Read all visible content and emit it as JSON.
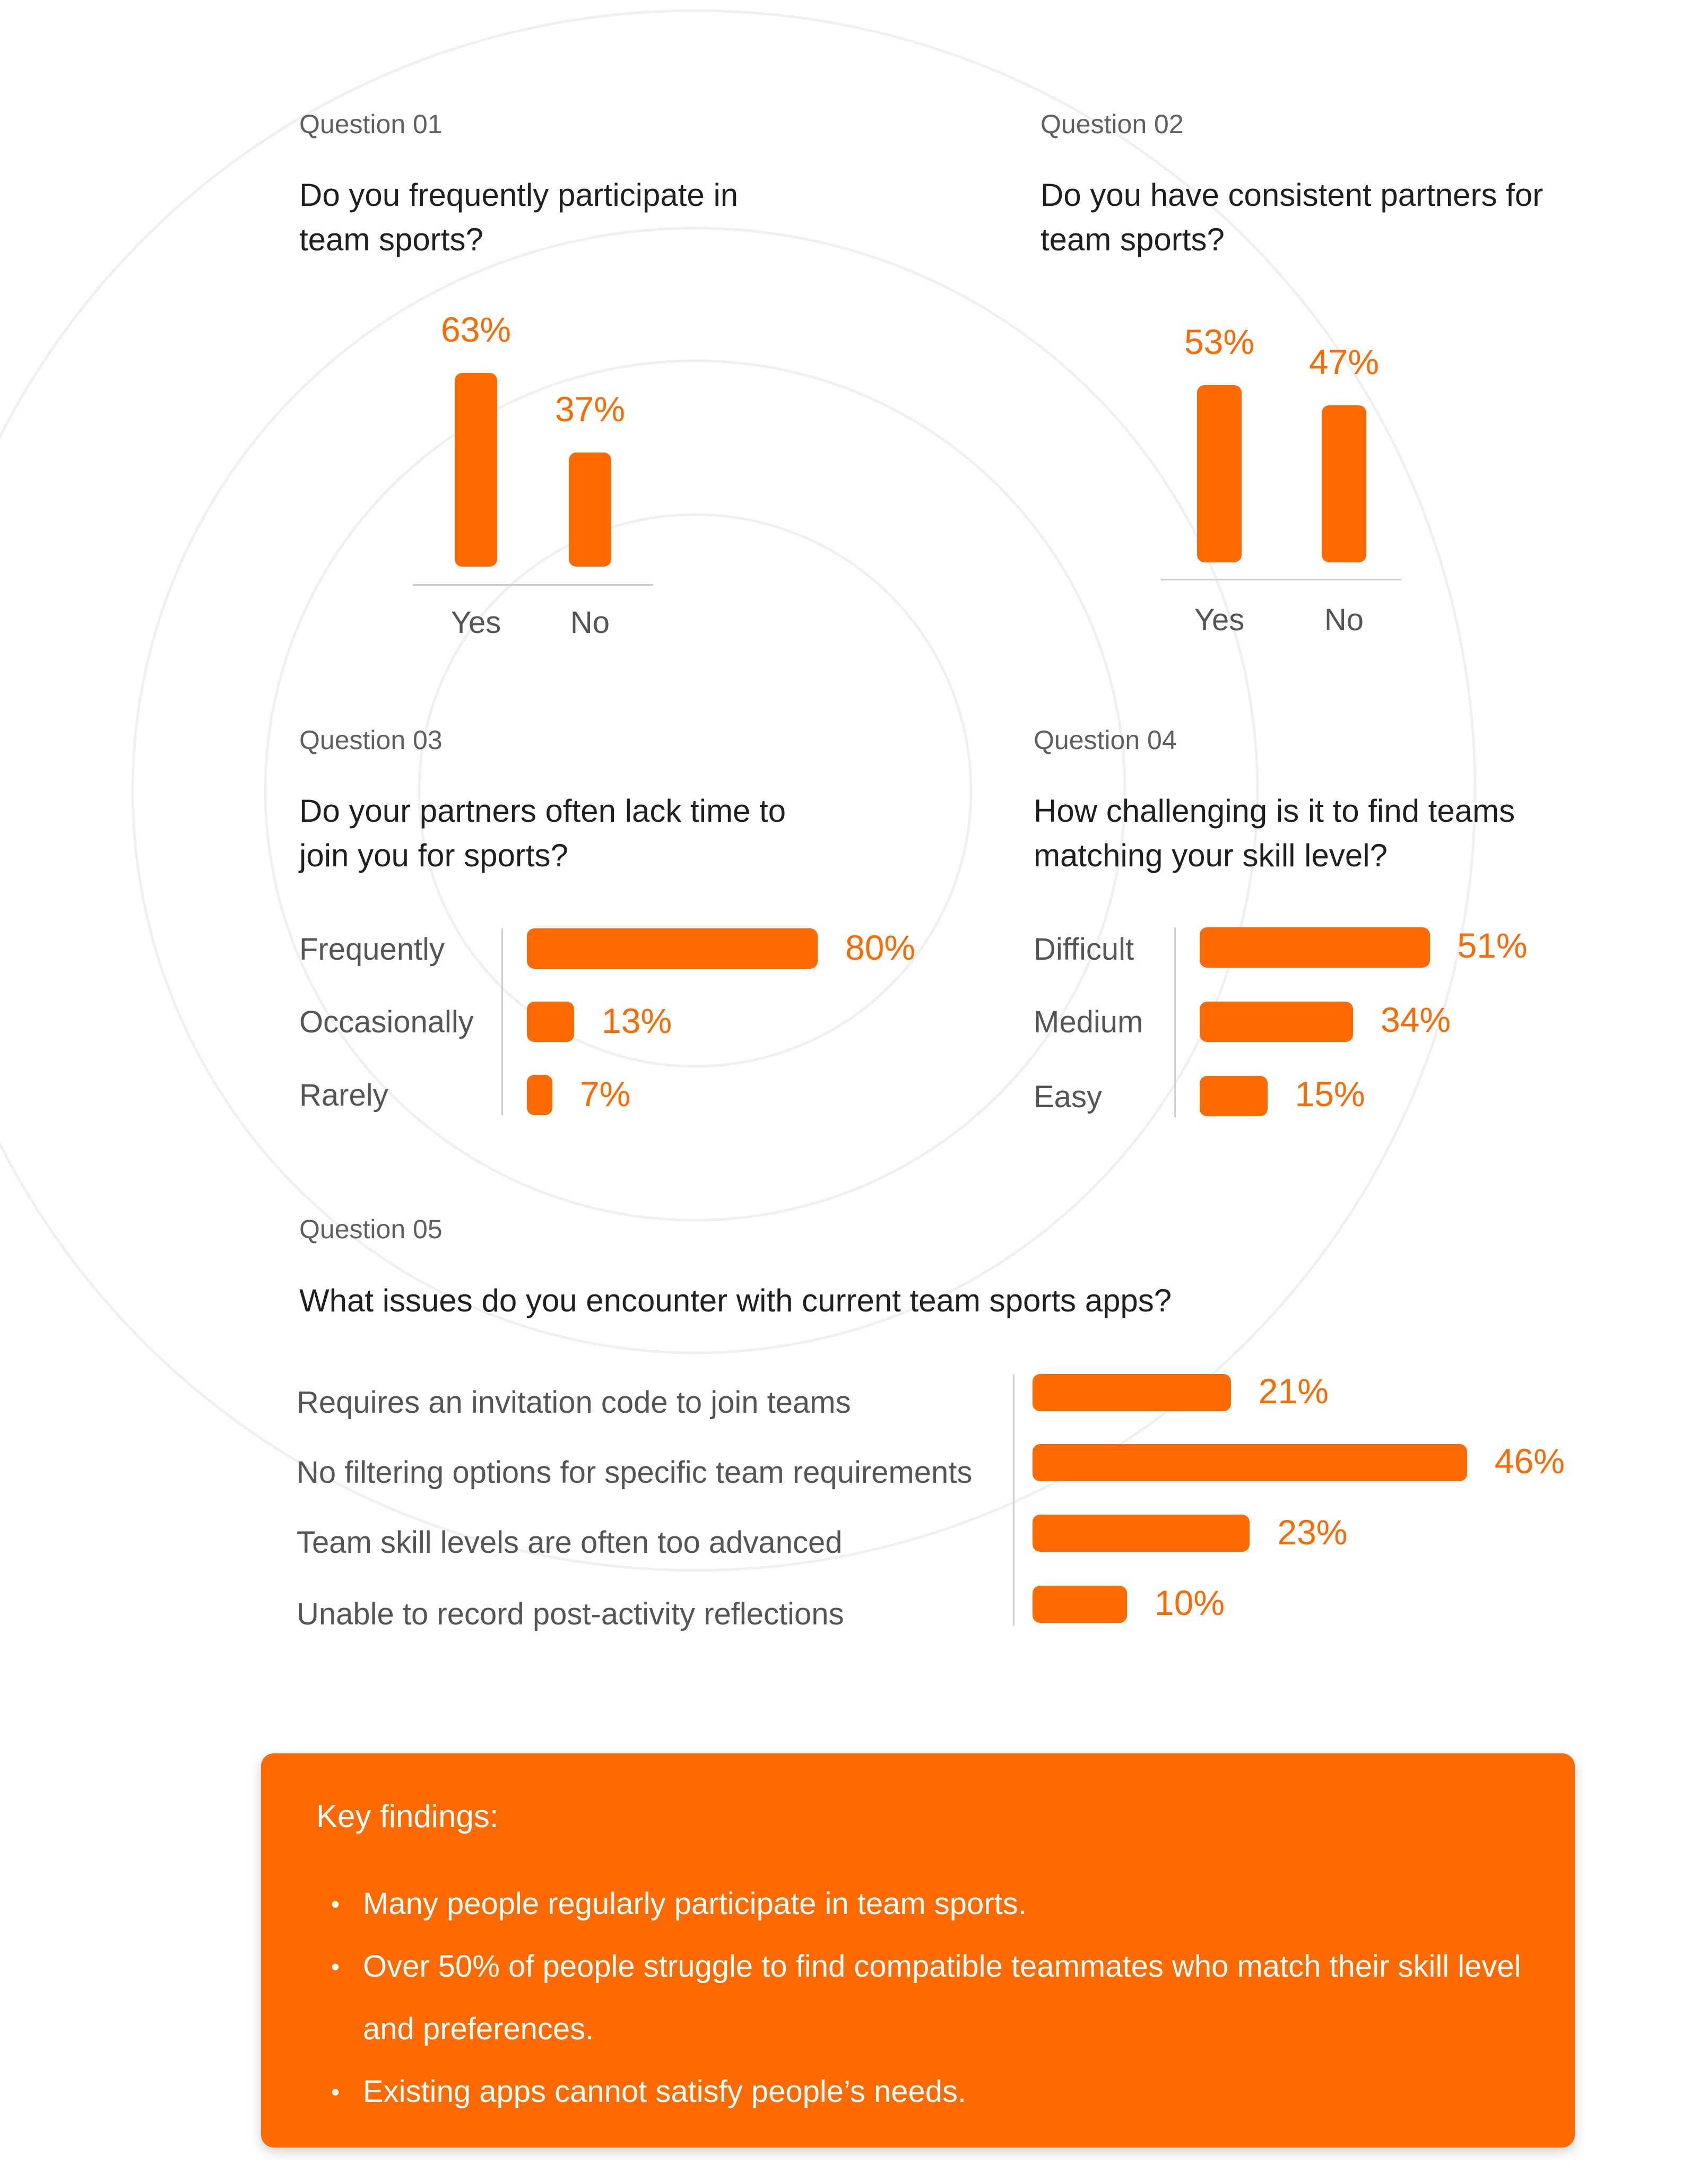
{
  "colors": {
    "accent": "#FF6A00",
    "axis": "#c9c9c9",
    "ring": "#f0f0f0"
  },
  "questions": [
    {
      "label": "Question 01",
      "text": "Do you frequently participate in team sports?"
    },
    {
      "label": "Question 02",
      "text": "Do you have consistent partners for team sports?"
    },
    {
      "label": "Question 03",
      "text": "Do your partners often lack time to join you for sports?"
    },
    {
      "label": "Question 04",
      "text": "How challenging is it to find teams matching your skill level?"
    },
    {
      "label": "Question 05",
      "text": "What issues do you encounter with current team sports apps?"
    }
  ],
  "chart_data": [
    {
      "type": "bar",
      "orientation": "vertical",
      "title": "Do you frequently participate in team sports?",
      "categories": [
        "Yes",
        "No"
      ],
      "values": [
        63,
        37
      ],
      "labels": [
        "63%",
        "37%"
      ],
      "unit": "%"
    },
    {
      "type": "bar",
      "orientation": "vertical",
      "title": "Do you have consistent partners for team sports?",
      "categories": [
        "Yes",
        "No"
      ],
      "values": [
        53,
        47
      ],
      "labels": [
        "53%",
        "47%"
      ],
      "unit": "%"
    },
    {
      "type": "bar",
      "orientation": "horizontal",
      "title": "Do your partners often lack time to join you for sports?",
      "categories": [
        "Frequently",
        "Occasionally",
        "Rarely"
      ],
      "values": [
        80,
        13,
        7
      ],
      "labels": [
        "80%",
        "13%",
        "7%"
      ],
      "unit": "%"
    },
    {
      "type": "bar",
      "orientation": "horizontal",
      "title": "How challenging is it to find teams matching your skill level?",
      "categories": [
        "Difficult",
        "Medium",
        "Easy"
      ],
      "values": [
        51,
        34,
        15
      ],
      "labels": [
        "51%",
        "34%",
        "15%"
      ],
      "unit": "%"
    },
    {
      "type": "bar",
      "orientation": "horizontal",
      "title": "What issues do you encounter with current team sports apps?",
      "categories": [
        "Requires an invitation code to join teams",
        "No filtering options for specific team requirements",
        "Team skill levels are often too advanced",
        "Unable to record post-activity reflections"
      ],
      "values": [
        21,
        46,
        23,
        10
      ],
      "labels": [
        "21%",
        "46%",
        "23%",
        "10%"
      ],
      "unit": "%"
    }
  ],
  "findings": {
    "title": "Key findings:",
    "items": [
      "Many people regularly participate in team sports.",
      "Over 50% of people struggle to find compatible teammates who match their skill level and preferences.",
      "Existing apps cannot satisfy people’s needs."
    ]
  }
}
